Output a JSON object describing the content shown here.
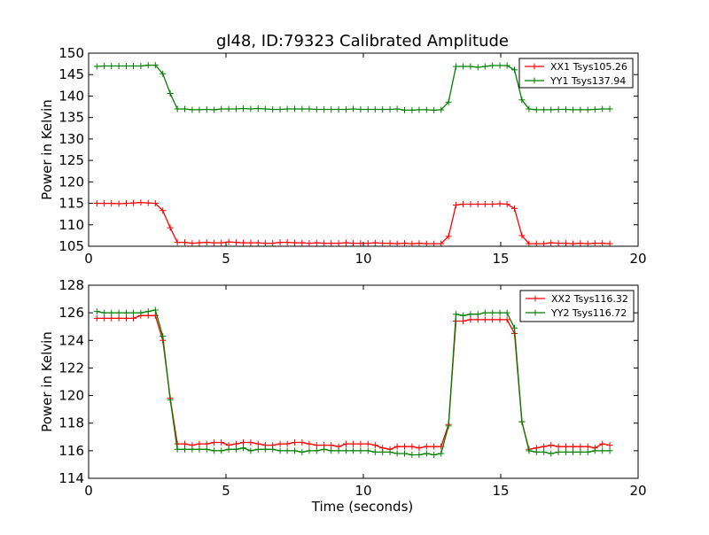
{
  "chart_data": [
    {
      "type": "line",
      "title": "gl48, ID:79323 Calibrated Amplitude",
      "xlabel": "",
      "ylabel": "Power in Kelvin",
      "xlim": [
        0,
        20
      ],
      "ylim": [
        105,
        150
      ],
      "xticks": [
        0,
        5,
        10,
        15,
        20
      ],
      "yticks": [
        105,
        110,
        115,
        120,
        125,
        130,
        135,
        140,
        145,
        150
      ],
      "grid": false,
      "legend": "top-right",
      "x": [
        0.3,
        0.57,
        0.83,
        1.1,
        1.37,
        1.63,
        1.9,
        2.17,
        2.43,
        2.7,
        2.97,
        3.23,
        3.5,
        3.77,
        4.03,
        4.3,
        4.57,
        4.83,
        5.1,
        5.37,
        5.63,
        5.9,
        6.17,
        6.43,
        6.7,
        6.97,
        7.23,
        7.5,
        7.77,
        8.03,
        8.3,
        8.57,
        8.83,
        9.1,
        9.37,
        9.63,
        9.9,
        10.17,
        10.43,
        10.7,
        10.97,
        11.23,
        11.5,
        11.77,
        12.03,
        12.3,
        12.57,
        12.83,
        13.1,
        13.37,
        13.63,
        13.9,
        14.17,
        14.43,
        14.7,
        14.97,
        15.23,
        15.5,
        15.77,
        16.03,
        16.3,
        16.57,
        16.83,
        17.1,
        17.37,
        17.63,
        17.9,
        18.17,
        18.43,
        18.7,
        18.97
      ],
      "series": [
        {
          "name": "XX1 Tsys105.26",
          "color": "#ff0000",
          "values": [
            115.0,
            115.0,
            115.0,
            114.9,
            115.0,
            115.1,
            115.2,
            115.1,
            115.0,
            113.3,
            109.3,
            105.9,
            105.9,
            105.7,
            105.8,
            105.9,
            105.8,
            105.8,
            106.0,
            105.9,
            105.8,
            105.8,
            105.8,
            105.7,
            105.7,
            105.9,
            105.9,
            105.8,
            105.8,
            105.7,
            105.8,
            105.7,
            105.7,
            105.7,
            105.8,
            105.7,
            105.7,
            105.7,
            105.8,
            105.7,
            105.7,
            105.6,
            105.7,
            105.6,
            105.7,
            105.6,
            105.6,
            105.6,
            107.3,
            114.6,
            114.8,
            114.8,
            114.8,
            114.8,
            114.8,
            114.9,
            114.8,
            113.8,
            107.5,
            105.6,
            105.6,
            105.6,
            105.8,
            105.7,
            105.7,
            105.6,
            105.7,
            105.6,
            105.7,
            105.7,
            105.6
          ]
        },
        {
          "name": "YY1 Tsys137.94",
          "color": "#008000",
          "values": [
            146.9,
            147.0,
            147.0,
            147.0,
            147.0,
            147.0,
            147.0,
            147.2,
            147.2,
            145.2,
            140.6,
            137.0,
            137.0,
            136.8,
            136.8,
            136.9,
            136.8,
            137.0,
            137.0,
            137.0,
            137.1,
            137.0,
            137.1,
            137.0,
            136.9,
            136.9,
            137.0,
            137.0,
            137.0,
            137.0,
            136.9,
            136.9,
            136.9,
            136.9,
            136.9,
            137.0,
            136.9,
            136.9,
            136.9,
            136.9,
            136.9,
            137.0,
            136.7,
            136.7,
            136.8,
            136.8,
            136.7,
            136.8,
            138.6,
            146.9,
            146.9,
            146.9,
            146.7,
            146.9,
            147.1,
            147.1,
            147.1,
            146.1,
            139.1,
            137.0,
            136.8,
            136.8,
            136.8,
            136.9,
            136.9,
            136.8,
            136.8,
            136.8,
            136.9,
            137.0,
            137.0
          ]
        }
      ]
    },
    {
      "type": "line",
      "title": "",
      "xlabel": "Time (seconds)",
      "ylabel": "Power in Kelvin",
      "xlim": [
        0,
        20
      ],
      "ylim": [
        114,
        128
      ],
      "xticks": [
        0,
        5,
        10,
        15,
        20
      ],
      "yticks": [
        114,
        116,
        118,
        120,
        122,
        124,
        126,
        128
      ],
      "grid": false,
      "legend": "top-right",
      "x": [
        0.3,
        0.57,
        0.83,
        1.1,
        1.37,
        1.63,
        1.9,
        2.17,
        2.43,
        2.7,
        2.97,
        3.23,
        3.5,
        3.77,
        4.03,
        4.3,
        4.57,
        4.83,
        5.1,
        5.37,
        5.63,
        5.9,
        6.17,
        6.43,
        6.7,
        6.97,
        7.23,
        7.5,
        7.77,
        8.03,
        8.3,
        8.57,
        8.83,
        9.1,
        9.37,
        9.63,
        9.9,
        10.17,
        10.43,
        10.7,
        10.97,
        11.23,
        11.5,
        11.77,
        12.03,
        12.3,
        12.57,
        12.83,
        13.1,
        13.37,
        13.63,
        13.9,
        14.17,
        14.43,
        14.7,
        14.97,
        15.23,
        15.5,
        15.77,
        16.03,
        16.3,
        16.57,
        16.83,
        17.1,
        17.37,
        17.63,
        17.9,
        18.17,
        18.43,
        18.7,
        18.97
      ],
      "series": [
        {
          "name": "XX2 Tsys116.32",
          "color": "#ff0000",
          "values": [
            125.6,
            125.6,
            125.6,
            125.6,
            125.6,
            125.6,
            125.8,
            125.8,
            125.8,
            124.0,
            119.8,
            116.5,
            116.5,
            116.4,
            116.5,
            116.5,
            116.6,
            116.6,
            116.4,
            116.5,
            116.6,
            116.6,
            116.5,
            116.4,
            116.4,
            116.5,
            116.5,
            116.6,
            116.6,
            116.5,
            116.4,
            116.4,
            116.4,
            116.3,
            116.5,
            116.5,
            116.5,
            116.5,
            116.4,
            116.2,
            116.1,
            116.3,
            116.3,
            116.3,
            116.2,
            116.3,
            116.3,
            116.3,
            117.9,
            125.4,
            125.4,
            125.5,
            125.5,
            125.5,
            125.5,
            125.5,
            125.5,
            124.5,
            118.1,
            116.1,
            116.2,
            116.3,
            116.4,
            116.3,
            116.3,
            116.3,
            116.3,
            116.3,
            116.2,
            116.5,
            116.4
          ]
        },
        {
          "name": "YY2 Tsys116.72",
          "color": "#008000",
          "values": [
            126.1,
            126.0,
            126.0,
            126.0,
            126.0,
            126.0,
            126.0,
            126.1,
            126.2,
            124.3,
            119.7,
            116.1,
            116.1,
            116.1,
            116.1,
            116.1,
            116.0,
            116.0,
            116.1,
            116.1,
            116.2,
            116.0,
            116.1,
            116.1,
            116.1,
            116.0,
            116.0,
            116.0,
            115.9,
            116.0,
            116.0,
            116.1,
            116.0,
            116.0,
            116.0,
            116.0,
            116.0,
            116.0,
            115.9,
            115.9,
            115.9,
            115.8,
            115.8,
            115.7,
            115.7,
            115.8,
            115.7,
            115.8,
            117.8,
            125.9,
            125.8,
            125.9,
            125.9,
            126.0,
            126.0,
            126.0,
            126.0,
            124.9,
            118.1,
            116.0,
            115.9,
            115.9,
            115.8,
            115.9,
            115.9,
            115.9,
            115.9,
            115.9,
            116.0,
            116.0,
            116.0
          ]
        }
      ]
    }
  ]
}
